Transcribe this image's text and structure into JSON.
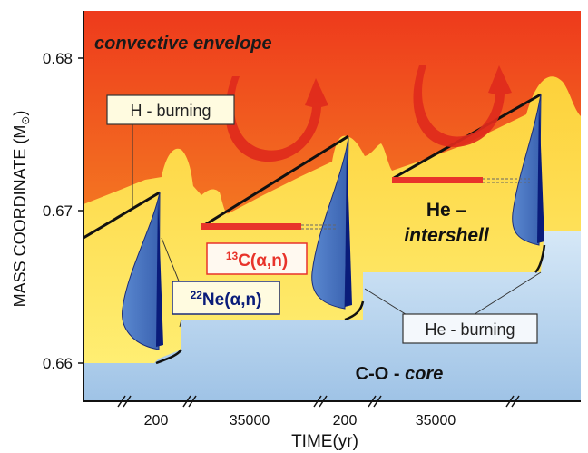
{
  "chart_data": {
    "type": "diagram",
    "ylabel": "MASS COORDINATE (M",
    "ylabel_sub": "⊙",
    "ylabel_close": ")",
    "xlabel": "TIME(yr)",
    "y_ticks": [
      "0.68",
      "0.67",
      "0.66"
    ],
    "x_ticks": [
      "200",
      "35000",
      "200",
      "35000"
    ],
    "regions": {
      "envelope": "convective envelope",
      "he_intershell_1": "He –",
      "he_intershell_2": "intershell",
      "core_1": "C-O - ",
      "core_2": "core"
    },
    "labels": {
      "h_burning": "H - burning",
      "he_burning": "He - burning",
      "c13_sup": "13",
      "c13_main": "C(α,n)",
      "ne22_sup": "22",
      "ne22_main": "Ne(α,n)"
    },
    "colors": {
      "envelope_top": "#ee3a1c",
      "envelope_mid": "#f5a623",
      "intershell": "#ffe866",
      "core": "#bcd7ee",
      "pulse_fill": "#4a78c2",
      "pulse_core": "#0a1c7a",
      "pocket": "#e8332a",
      "arrow": "#e02a1c"
    }
  }
}
